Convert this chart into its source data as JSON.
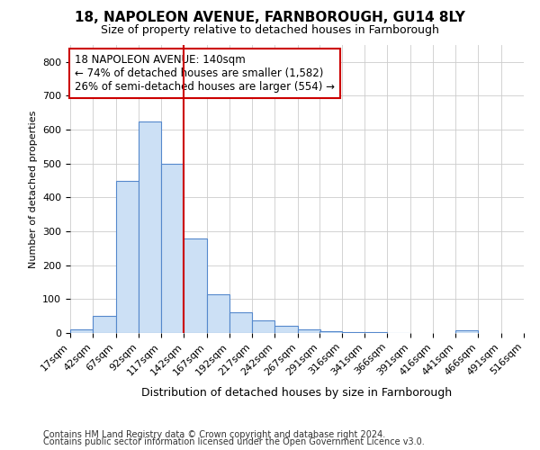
{
  "title1": "18, NAPOLEON AVENUE, FARNBOROUGH, GU14 8LY",
  "title2": "Size of property relative to detached houses in Farnborough",
  "xlabel": "Distribution of detached houses by size in Farnborough",
  "ylabel": "Number of detached properties",
  "footnote1": "Contains HM Land Registry data © Crown copyright and database right 2024.",
  "footnote2": "Contains public sector information licensed under the Open Government Licence v3.0.",
  "bin_edges": [
    17,
    42,
    67,
    92,
    117,
    142,
    167,
    192,
    217,
    242,
    267,
    291,
    316,
    341,
    366,
    391,
    416,
    441,
    466,
    491,
    516
  ],
  "bin_labels": [
    "17sqm",
    "42sqm",
    "67sqm",
    "92sqm",
    "117sqm",
    "142sqm",
    "167sqm",
    "192sqm",
    "217sqm",
    "242sqm",
    "267sqm",
    "291sqm",
    "316sqm",
    "341sqm",
    "366sqm",
    "391sqm",
    "416sqm",
    "441sqm",
    "466sqm",
    "491sqm",
    "516sqm"
  ],
  "counts": [
    10,
    50,
    450,
    625,
    500,
    280,
    115,
    60,
    38,
    22,
    10,
    5,
    3,
    2,
    1,
    0,
    0,
    8,
    0,
    0
  ],
  "bar_facecolor": "#cce0f5",
  "bar_edgecolor": "#5588cc",
  "vline_x": 142,
  "vline_color": "#cc0000",
  "ylim_max": 850,
  "yticks": [
    0,
    100,
    200,
    300,
    400,
    500,
    600,
    700,
    800
  ],
  "annotation_line1": "18 NAPOLEON AVENUE: 140sqm",
  "annotation_line2": "← 74% of detached houses are smaller (1,582)",
  "annotation_line3": "26% of semi-detached houses are larger (554) →",
  "box_edge_color": "#cc0000",
  "bg_color": "#ffffff",
  "grid_color": "#cccccc",
  "title1_fontsize": 11,
  "title2_fontsize": 9,
  "xlabel_fontsize": 9,
  "ylabel_fontsize": 8,
  "tick_fontsize": 8,
  "footnote_fontsize": 7,
  "ann_fontsize": 8.5
}
